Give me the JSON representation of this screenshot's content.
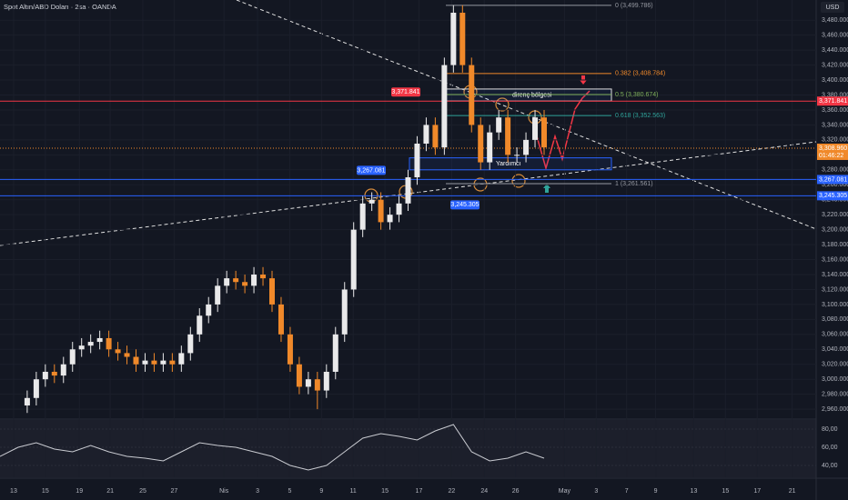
{
  "chart_data": [
    {
      "type": "candlestick",
      "title": "Spot Altın/ABD Doları · 2sa · OANDA",
      "unit_label": "USD",
      "up_color": "#e9e9ea",
      "down_color": "#f0892a",
      "x": [
        6,
        8,
        10,
        12,
        14,
        16,
        18,
        20,
        22,
        24,
        26,
        28,
        30,
        32,
        34,
        36,
        38,
        40,
        42,
        44,
        46,
        48,
        50,
        52,
        54,
        56,
        58,
        60,
        62,
        64,
        66,
        68,
        70,
        72,
        74,
        76,
        78,
        80,
        82,
        84,
        86,
        88,
        90,
        92,
        94,
        96,
        98,
        100,
        102,
        104,
        106,
        108,
        110,
        112,
        114,
        116,
        118,
        120
      ],
      "open": [
        2965,
        2975,
        3000,
        3010,
        3005,
        3020,
        3040,
        3045,
        3050,
        3055,
        3040,
        3035,
        3030,
        3020,
        3025,
        3020,
        3025,
        3020,
        3035,
        3060,
        3085,
        3100,
        3125,
        3135,
        3130,
        3125,
        3140,
        3135,
        3100,
        3060,
        3020,
        2990,
        3000,
        2985,
        3010,
        3060,
        3120,
        3200,
        3235,
        3240,
        3210,
        3220,
        3235,
        3270,
        3315,
        3340,
        3310,
        3420,
        3490,
        3420,
        3340,
        3290,
        3330,
        3350,
        3300,
        3300,
        3320,
        3350
      ],
      "high": [
        2985,
        3010,
        3020,
        3020,
        3030,
        3050,
        3055,
        3060,
        3065,
        3065,
        3050,
        3045,
        3040,
        3035,
        3035,
        3035,
        3035,
        3045,
        3070,
        3095,
        3110,
        3135,
        3145,
        3145,
        3140,
        3150,
        3150,
        3145,
        3110,
        3070,
        3030,
        3010,
        3010,
        3020,
        3070,
        3130,
        3210,
        3245,
        3250,
        3250,
        3230,
        3245,
        3280,
        3325,
        3350,
        3350,
        3430,
        3500,
        3500,
        3430,
        3350,
        3340,
        3360,
        3360,
        3310,
        3330,
        3360,
        3360
      ],
      "low": [
        2955,
        2965,
        2990,
        2995,
        2995,
        3010,
        3030,
        3035,
        3040,
        3030,
        3025,
        3020,
        3010,
        3010,
        3010,
        3010,
        3010,
        3010,
        3025,
        3050,
        3075,
        3090,
        3115,
        3120,
        3115,
        3115,
        3125,
        3090,
        3050,
        3010,
        2980,
        2980,
        2960,
        2975,
        3000,
        3050,
        3110,
        3190,
        3225,
        3200,
        3200,
        3210,
        3225,
        3260,
        3305,
        3300,
        3300,
        3410,
        3410,
        3330,
        3280,
        3280,
        3320,
        3290,
        3290,
        3290,
        3310,
        3300
      ],
      "close": [
        2975,
        3000,
        3010,
        3005,
        3020,
        3040,
        3045,
        3050,
        3055,
        3040,
        3035,
        3030,
        3020,
        3025,
        3020,
        3025,
        3020,
        3035,
        3060,
        3085,
        3100,
        3125,
        3135,
        3130,
        3125,
        3140,
        3135,
        3100,
        3060,
        3020,
        2990,
        3000,
        2985,
        3010,
        3060,
        3120,
        3200,
        3235,
        3240,
        3210,
        3220,
        3235,
        3270,
        3315,
        3340,
        3310,
        3420,
        3490,
        3420,
        3340,
        3290,
        3330,
        3350,
        3300,
        3300,
        3320,
        3350,
        3310
      ],
      "xlim": [
        0,
        180
      ],
      "xticks": [
        {
          "value": 3,
          "label": "13"
        },
        {
          "value": 10,
          "label": "15"
        },
        {
          "value": 17.5,
          "label": "19"
        },
        {
          "value": 24.3,
          "label": "21"
        },
        {
          "value": 31.5,
          "label": "25"
        },
        {
          "value": 38.4,
          "label": "27"
        },
        {
          "value": 49.4,
          "label": "Nis"
        },
        {
          "value": 56.8,
          "label": "3"
        },
        {
          "value": 63.9,
          "label": "5"
        },
        {
          "value": 70.9,
          "label": "9"
        },
        {
          "value": 77.9,
          "label": "11"
        },
        {
          "value": 84.9,
          "label": "15"
        },
        {
          "value": 92.4,
          "label": "17"
        },
        {
          "value": 99.6,
          "label": "22"
        },
        {
          "value": 106.8,
          "label": "24"
        },
        {
          "value": 113.7,
          "label": "26"
        },
        {
          "value": 124.5,
          "label": "May"
        },
        {
          "value": 131.5,
          "label": "3"
        },
        {
          "value": 138.2,
          "label": "7"
        },
        {
          "value": 144.6,
          "label": "9"
        },
        {
          "value": 153,
          "label": "13"
        },
        {
          "value": 160,
          "label": "15"
        },
        {
          "value": 167,
          "label": "17"
        },
        {
          "value": 174.7,
          "label": "21"
        }
      ],
      "ylim": [
        2948,
        3507
      ],
      "yticks": [
        {
          "value": 2960,
          "label": "2,960.000"
        },
        {
          "value": 2980,
          "label": "2,980.000"
        },
        {
          "value": 3000,
          "label": "3,000.000"
        },
        {
          "value": 3020,
          "label": "3,020.000"
        },
        {
          "value": 3040,
          "label": "3,040.000"
        },
        {
          "value": 3060,
          "label": "3,060.000"
        },
        {
          "value": 3080,
          "label": "3,080.000"
        },
        {
          "value": 3100,
          "label": "3,100.000"
        },
        {
          "value": 3120,
          "label": "3,120.000"
        },
        {
          "value": 3140,
          "label": "3,140.000"
        },
        {
          "value": 3160,
          "label": "3,160.000"
        },
        {
          "value": 3180,
          "label": "3,180.000"
        },
        {
          "value": 3200,
          "label": "3,200.000"
        },
        {
          "value": 3220,
          "label": "3,220.000"
        },
        {
          "value": 3240,
          "label": "3,240.000"
        },
        {
          "value": 3260,
          "label": "3,260.000"
        },
        {
          "value": 3280,
          "label": "3,280.000"
        },
        {
          "value": 3300,
          "label": "3,300.000"
        },
        {
          "value": 3320,
          "label": "3,320.000"
        },
        {
          "value": 3340,
          "label": "3,340.000"
        },
        {
          "value": 3360,
          "label": "3,360.000"
        },
        {
          "value": 3380,
          "label": "3,380.000"
        },
        {
          "value": 3400,
          "label": "3,400.000"
        },
        {
          "value": 3420,
          "label": "3,420.000"
        },
        {
          "value": 3440,
          "label": "3,440.000"
        },
        {
          "value": 3460,
          "label": "3,460.000"
        },
        {
          "value": 3480,
          "label": "3,480.000"
        }
      ],
      "fib_levels": [
        {
          "value": 3499.786,
          "label": "0 (3,499.786)",
          "color": "#9598a1"
        },
        {
          "value": 3408.784,
          "label": "0.382 (3,408.784)",
          "color": "#f0892a"
        },
        {
          "value": 3380.674,
          "label": "0.5 (3,380.674)",
          "color": "#7fb05a"
        },
        {
          "value": 3352.563,
          "label": "0.618 (3,352.563)",
          "color": "#2fa39a"
        },
        {
          "value": 3261.561,
          "label": "1 (3,261.561)",
          "color": "#9598a1"
        }
      ],
      "levels": [
        {
          "value": 3371.841,
          "label": "3,371.841",
          "color": "#f23645"
        },
        {
          "value": 3267.081,
          "label": "3,267.081",
          "color": "#2962ff"
        },
        {
          "value": 3245.305,
          "label": "3,245.305",
          "color": "#2962ff"
        }
      ],
      "zones": [
        {
          "low": 3372,
          "high": 3388,
          "label": "direnç bölgesi"
        },
        {
          "low": 3280,
          "high": 3296,
          "label": "Yardımcı"
        }
      ],
      "last_price": {
        "value": 3308.96,
        "label": "3,308.960",
        "countdown": "01:46:22"
      }
    },
    {
      "type": "line",
      "color": "#c9cbd1",
      "x": [
        0,
        4,
        8,
        12,
        16,
        20,
        24,
        28,
        32,
        36,
        40,
        44,
        48,
        52,
        56,
        60,
        64,
        68,
        72,
        76,
        80,
        84,
        88,
        92,
        96,
        100,
        104,
        108,
        112,
        116,
        120
      ],
      "values": [
        50,
        60,
        65,
        58,
        55,
        62,
        55,
        50,
        48,
        45,
        55,
        65,
        62,
        60,
        55,
        50,
        40,
        35,
        40,
        55,
        70,
        75,
        72,
        68,
        78,
        85,
        55,
        45,
        48,
        55,
        48
      ],
      "ylim": [
        27,
        90
      ],
      "yticks": [
        {
          "value": 80,
          "label": "80,00"
        },
        {
          "value": 60,
          "label": "60,00"
        },
        {
          "value": 40,
          "label": "40,00"
        }
      ]
    }
  ]
}
